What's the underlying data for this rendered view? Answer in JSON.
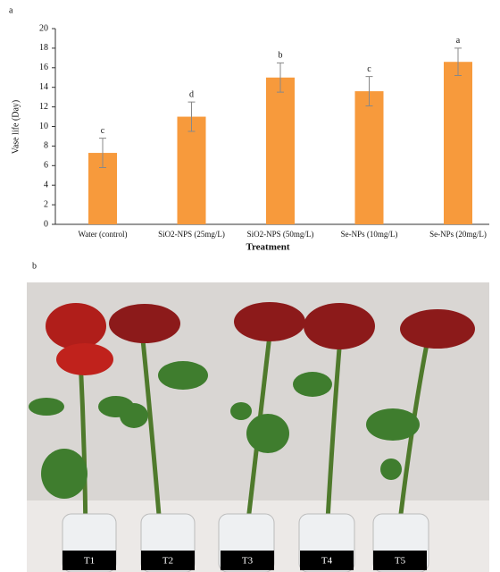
{
  "panels": [
    "a",
    "b"
  ],
  "chart_data": {
    "type": "bar",
    "ylabel": "Vase life (Day)",
    "xlabel": "Treatment",
    "categories": [
      "Water (control)",
      "SiO2-NPS (25mg/L)",
      "SiO2-NPS (50mg/L)",
      "Se-NPs (10mg/L)",
      "Se-NPs (20mg/L)"
    ],
    "values": [
      7.3,
      11.0,
      15.0,
      13.6,
      16.6
    ],
    "errors": [
      1.5,
      1.5,
      1.5,
      1.5,
      1.4
    ],
    "annotations": [
      "c",
      "d",
      "b",
      "c",
      "a"
    ],
    "color": "#f79a3c",
    "ylim": [
      0,
      20
    ],
    "yticks": [
      0,
      2,
      4,
      6,
      8,
      10,
      12,
      14,
      16,
      18,
      20
    ],
    "grid": false
  },
  "photo": {
    "labels": [
      "T1",
      "T2",
      "T3",
      "T4",
      "T5"
    ]
  }
}
